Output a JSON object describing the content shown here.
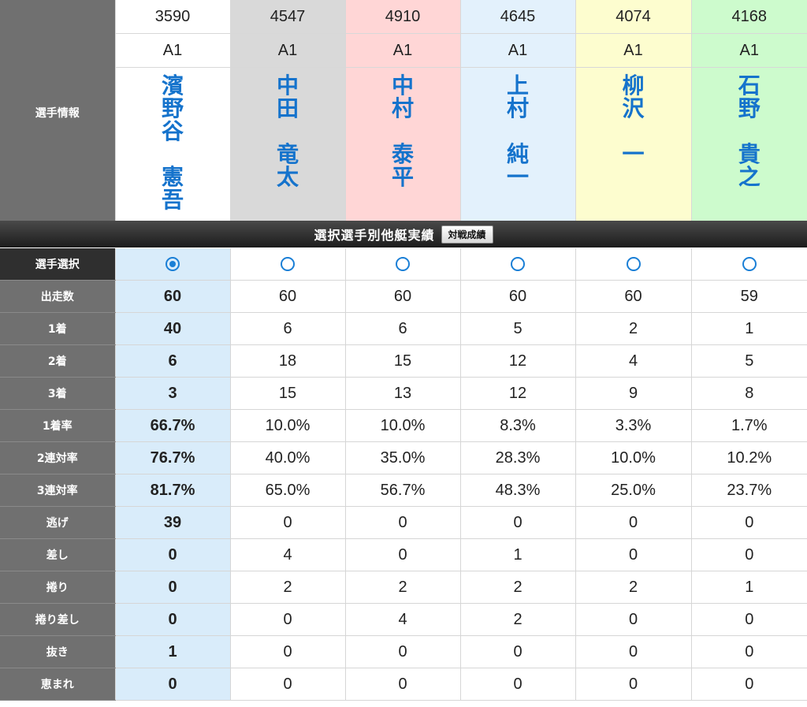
{
  "header_label": "選手情報",
  "racers": [
    {
      "id": "3590",
      "class": "A1",
      "surname": [
        "濱",
        "野",
        "谷"
      ],
      "given": [
        "憲",
        "吾"
      ],
      "bg": "#ffffff"
    },
    {
      "id": "4547",
      "class": "A1",
      "surname": [
        "中",
        "田"
      ],
      "given": [
        "竜",
        "太"
      ],
      "bg": "#d9d9d9"
    },
    {
      "id": "4910",
      "class": "A1",
      "surname": [
        "中",
        "村"
      ],
      "given": [
        "泰",
        "平"
      ],
      "bg": "#ffd6d6"
    },
    {
      "id": "4645",
      "class": "A1",
      "surname": [
        "上",
        "村"
      ],
      "given": [
        "純",
        "一"
      ],
      "bg": "#e3f1fc"
    },
    {
      "id": "4074",
      "class": "A1",
      "surname": [
        "柳",
        "沢"
      ],
      "given": [
        "一"
      ],
      "bg": "#fdfdcf"
    },
    {
      "id": "4168",
      "class": "A1",
      "surname": [
        "石",
        "野"
      ],
      "given": [
        "貴",
        "之"
      ],
      "bg": "#cdfbcd"
    }
  ],
  "section": {
    "title": "選択選手別他艇実績",
    "button": "対戦成績"
  },
  "select_label": "選手選択",
  "selected_index": 0,
  "stats": [
    {
      "label": "出走数",
      "values": [
        "60",
        "60",
        "60",
        "60",
        "60",
        "59"
      ]
    },
    {
      "label": "1着",
      "values": [
        "40",
        "6",
        "6",
        "5",
        "2",
        "1"
      ]
    },
    {
      "label": "2着",
      "values": [
        "6",
        "18",
        "15",
        "12",
        "4",
        "5"
      ]
    },
    {
      "label": "3着",
      "values": [
        "3",
        "15",
        "13",
        "12",
        "9",
        "8"
      ]
    },
    {
      "label": "1着率",
      "values": [
        "66.7%",
        "10.0%",
        "10.0%",
        "8.3%",
        "3.3%",
        "1.7%"
      ]
    },
    {
      "label": "2連対率",
      "values": [
        "76.7%",
        "40.0%",
        "35.0%",
        "28.3%",
        "10.0%",
        "10.2%"
      ]
    },
    {
      "label": "3連対率",
      "values": [
        "81.7%",
        "65.0%",
        "56.7%",
        "48.3%",
        "25.0%",
        "23.7%"
      ]
    },
    {
      "label": "逃げ",
      "values": [
        "39",
        "0",
        "0",
        "0",
        "0",
        "0"
      ]
    },
    {
      "label": "差し",
      "values": [
        "0",
        "4",
        "0",
        "1",
        "0",
        "0"
      ]
    },
    {
      "label": "捲り",
      "values": [
        "0",
        "2",
        "2",
        "2",
        "2",
        "1"
      ]
    },
    {
      "label": "捲り差し",
      "values": [
        "0",
        "0",
        "4",
        "2",
        "0",
        "0"
      ]
    },
    {
      "label": "抜き",
      "values": [
        "1",
        "0",
        "0",
        "0",
        "0",
        "0"
      ]
    },
    {
      "label": "恵まれ",
      "values": [
        "0",
        "0",
        "0",
        "0",
        "0",
        "0"
      ]
    }
  ]
}
